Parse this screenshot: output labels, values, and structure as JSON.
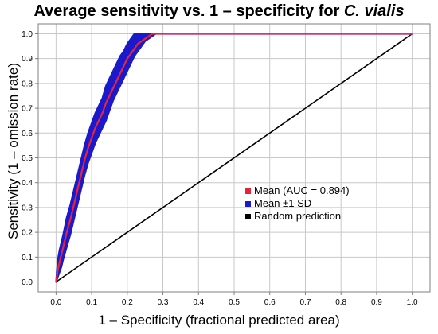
{
  "chart_data": {
    "type": "line",
    "title_prefix": "Average sensitivity vs. 1 – specificity for ",
    "title_species": "C. vialis",
    "xlabel": "1 – Specificity (fractional predicted area)",
    "ylabel": "Sensitivity (1 – omission rate)",
    "xlim": [
      -0.05,
      1.05
    ],
    "ylim": [
      -0.04,
      1.04
    ],
    "x_ticks": [
      "0.0",
      "0.1",
      "0.2",
      "0.3",
      "0.4",
      "0.5",
      "0.6",
      "0.7",
      "0.8",
      "0.9",
      "1.0"
    ],
    "y_ticks": [
      "0.0",
      "0.1",
      "0.2",
      "0.3",
      "0.4",
      "0.5",
      "0.6",
      "0.7",
      "0.8",
      "0.9",
      "1.0"
    ],
    "grid": true,
    "legend_position": "lower-right",
    "colors": {
      "mean": "#e8233a",
      "sd_band": "#1a1acc",
      "random": "#000000",
      "grid": "#c8c8c8",
      "frame": "#7f7f7f"
    },
    "series": [
      {
        "name": "Mean (AUC = 0.894)",
        "x": [
          0.0,
          0.005,
          0.01,
          0.015,
          0.02,
          0.03,
          0.04,
          0.05,
          0.06,
          0.07,
          0.08,
          0.09,
          0.1,
          0.11,
          0.12,
          0.13,
          0.14,
          0.15,
          0.16,
          0.17,
          0.18,
          0.19,
          0.2,
          0.21,
          0.22,
          0.23,
          0.24,
          0.25,
          0.26,
          0.27,
          0.28,
          0.29,
          0.3,
          1.0
        ],
        "y": [
          0.0,
          0.05,
          0.08,
          0.11,
          0.14,
          0.2,
          0.25,
          0.31,
          0.37,
          0.43,
          0.49,
          0.54,
          0.58,
          0.62,
          0.65,
          0.68,
          0.72,
          0.75,
          0.78,
          0.81,
          0.84,
          0.87,
          0.9,
          0.92,
          0.94,
          0.96,
          0.97,
          0.98,
          0.99,
          1.0,
          1.0,
          1.0,
          1.0,
          1.0
        ]
      },
      {
        "name": "Mean ±1 SD",
        "x": [
          0.0,
          0.005,
          0.01,
          0.015,
          0.02,
          0.03,
          0.04,
          0.05,
          0.06,
          0.07,
          0.08,
          0.09,
          0.1,
          0.11,
          0.12,
          0.13,
          0.14,
          0.15,
          0.16,
          0.17,
          0.18,
          0.19,
          0.2,
          0.21,
          0.22,
          0.23,
          0.24,
          0.25,
          0.26,
          0.27,
          0.28,
          0.29,
          0.3
        ],
        "lower": [
          0.0,
          0.02,
          0.04,
          0.06,
          0.09,
          0.14,
          0.19,
          0.25,
          0.31,
          0.37,
          0.43,
          0.48,
          0.52,
          0.56,
          0.59,
          0.62,
          0.65,
          0.69,
          0.73,
          0.76,
          0.79,
          0.82,
          0.85,
          0.88,
          0.91,
          0.93,
          0.95,
          0.97,
          0.98,
          0.99,
          1.0,
          1.0,
          1.0
        ],
        "upper": [
          0.0,
          0.09,
          0.13,
          0.16,
          0.19,
          0.26,
          0.31,
          0.37,
          0.43,
          0.49,
          0.55,
          0.6,
          0.64,
          0.68,
          0.71,
          0.74,
          0.79,
          0.82,
          0.85,
          0.88,
          0.91,
          0.93,
          0.96,
          0.98,
          1.0,
          1.0,
          1.0,
          1.0,
          1.0,
          1.0,
          1.0,
          1.0,
          1.0
        ]
      },
      {
        "name": "Random prediction",
        "x": [
          0.0,
          1.0
        ],
        "y": [
          0.0,
          1.0
        ]
      }
    ]
  }
}
